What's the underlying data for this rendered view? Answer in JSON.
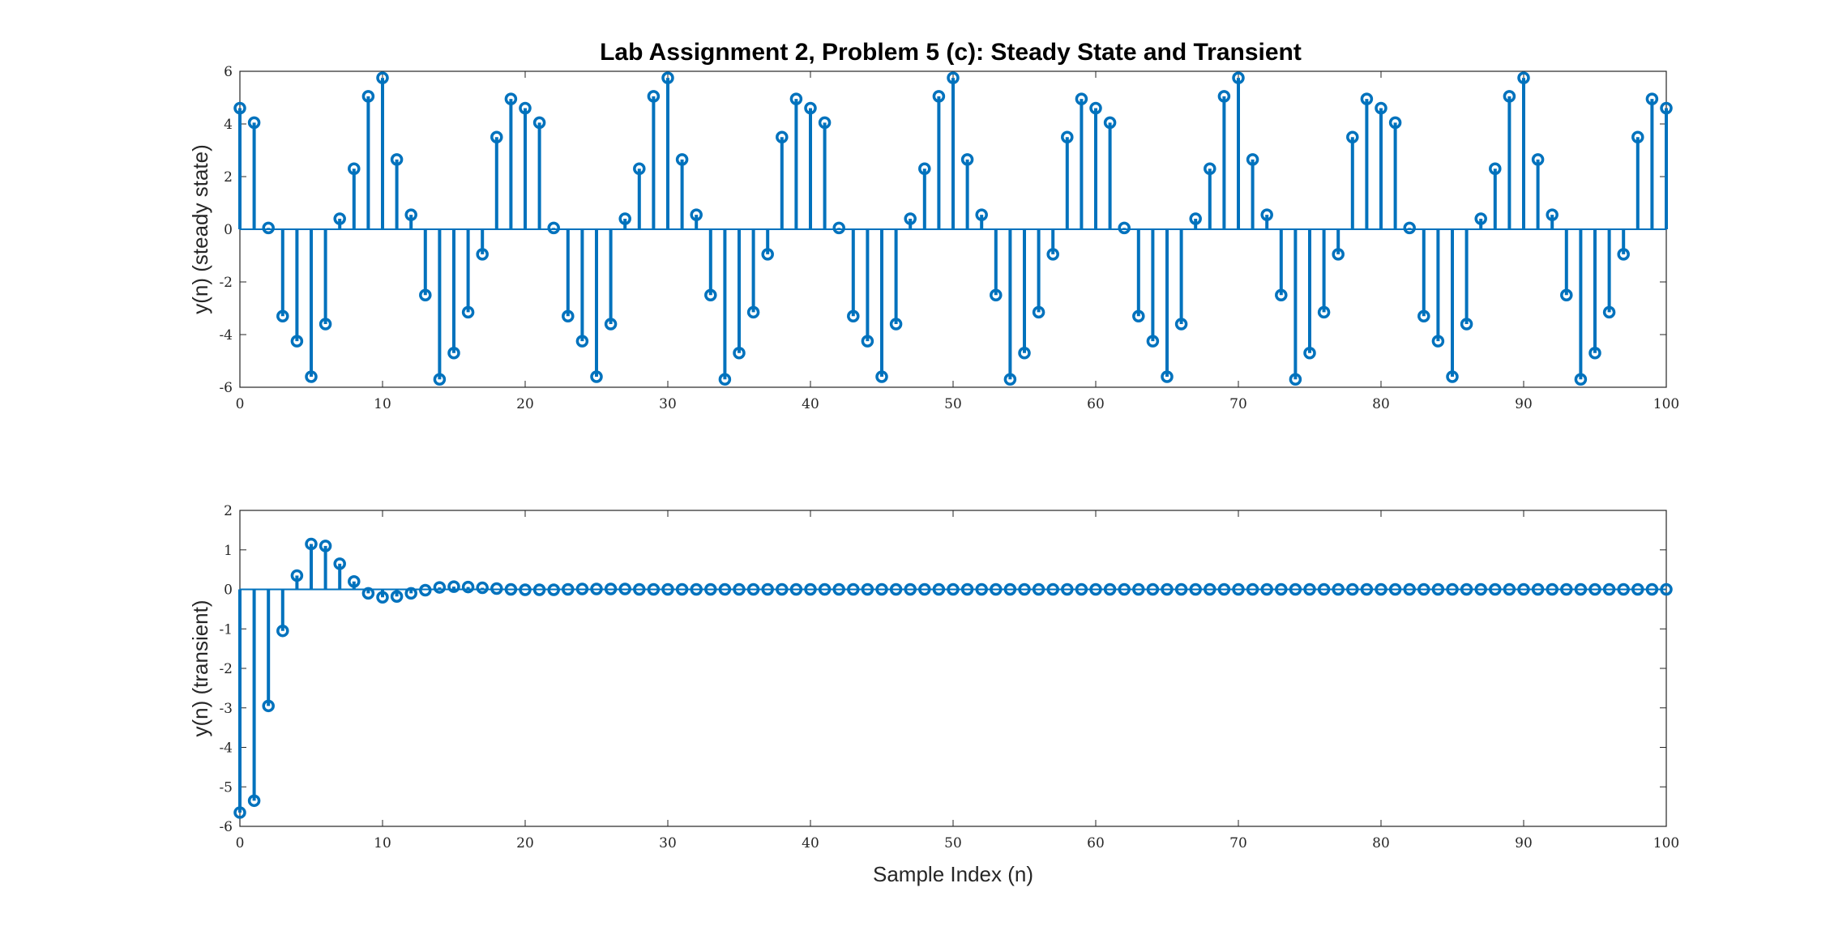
{
  "chart_data": [
    {
      "type": "stem",
      "title": "Lab Assignment 2, Problem 5 (c): Steady State and Transient",
      "xlabel": "",
      "ylabel": "y(n) (steady state)",
      "xlim": [
        0,
        100
      ],
      "ylim": [
        -6,
        6
      ],
      "xticks": [
        "0",
        "10",
        "20",
        "30",
        "40",
        "50",
        "60",
        "70",
        "80",
        "90",
        "100"
      ],
      "yticks": [
        "-6",
        "-4",
        "-2",
        "0",
        "2",
        "4",
        "6"
      ],
      "x_start": 0,
      "color": "#0072BD",
      "values": [
        4.6,
        4.05,
        0.05,
        -3.3,
        -4.25,
        -5.6,
        -3.6,
        0.4,
        2.3,
        5.05,
        5.75,
        2.65,
        0.55,
        -2.5,
        -5.7,
        -4.7,
        -3.15,
        -0.95,
        3.5,
        4.95,
        4.6,
        4.05,
        0.05,
        -3.3,
        -4.25,
        -5.6,
        -3.6,
        0.4,
        2.3,
        5.05,
        5.75,
        2.65,
        0.55,
        -2.5,
        -5.7,
        -4.7,
        -3.15,
        -0.95,
        3.5,
        4.95,
        4.6,
        4.05,
        0.05,
        -3.3,
        -4.25,
        -5.6,
        -3.6,
        0.4,
        2.3,
        5.05,
        5.75,
        2.65,
        0.55,
        -2.5,
        -5.7,
        -4.7,
        -3.15,
        -0.95,
        3.5,
        4.95,
        4.6,
        4.05,
        0.05,
        -3.3,
        -4.25,
        -5.6,
        -3.6,
        0.4,
        2.3,
        5.05,
        5.75,
        2.65,
        0.55,
        -2.5,
        -5.7,
        -4.7,
        -3.15,
        -0.95,
        3.5,
        4.95,
        4.6,
        4.05,
        0.05,
        -3.3,
        -4.25,
        -5.6,
        -3.6,
        0.4,
        2.3,
        5.05,
        5.75,
        2.65,
        0.55,
        -2.5,
        -5.7,
        -4.7,
        -3.15,
        -0.95,
        3.5,
        4.95,
        4.6
      ]
    },
    {
      "type": "stem",
      "title": "",
      "xlabel": "Sample Index (n)",
      "ylabel": "y(n) (transient)",
      "xlim": [
        0,
        100
      ],
      "ylim": [
        -6,
        2
      ],
      "xticks": [
        "0",
        "10",
        "20",
        "30",
        "40",
        "50",
        "60",
        "70",
        "80",
        "90",
        "100"
      ],
      "yticks": [
        "-6",
        "-5",
        "-4",
        "-3",
        "-2",
        "-1",
        "0",
        "1",
        "2"
      ],
      "x_start": 0,
      "color": "#0072BD",
      "values": [
        -5.65,
        -5.35,
        -2.95,
        -1.05,
        0.35,
        1.15,
        1.1,
        0.65,
        0.2,
        -0.1,
        -0.2,
        -0.18,
        -0.1,
        -0.02,
        0.05,
        0.07,
        0.06,
        0.04,
        0.02,
        0.0,
        -0.01,
        -0.01,
        -0.01,
        0.0,
        0.01,
        0.01,
        0.01,
        0.01,
        0.0,
        0.0,
        0.0,
        0.0,
        0.0,
        0.0,
        0.0,
        0.0,
        0.0,
        0.0,
        0.0,
        0.0,
        0.0,
        0.0,
        0.0,
        0.0,
        0.0,
        0.0,
        0.0,
        0.0,
        0.0,
        0.0,
        0.0,
        0.0,
        0.0,
        0.0,
        0.0,
        0.0,
        0.0,
        0.0,
        0.0,
        0.0,
        0.0,
        0.0,
        0.0,
        0.0,
        0.0,
        0.0,
        0.0,
        0.0,
        0.0,
        0.0,
        0.0,
        0.0,
        0.0,
        0.0,
        0.0,
        0.0,
        0.0,
        0.0,
        0.0,
        0.0,
        0.0,
        0.0,
        0.0,
        0.0,
        0.0,
        0.0,
        0.0,
        0.0,
        0.0,
        0.0,
        0.0,
        0.0,
        0.0,
        0.0,
        0.0,
        0.0,
        0.0,
        0.0,
        0.0,
        0.0,
        0.0
      ]
    }
  ]
}
